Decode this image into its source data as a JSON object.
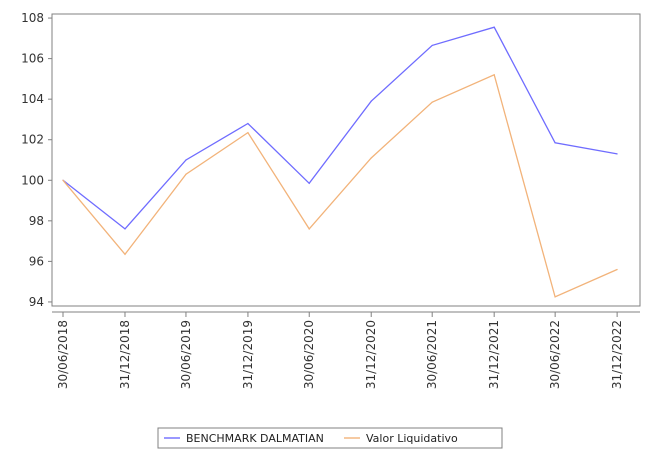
{
  "chart_data": {
    "type": "line",
    "title": "",
    "xlabel": "",
    "ylabel": "",
    "categories": [
      "30/06/2018",
      "31/12/2018",
      "30/06/2019",
      "31/12/2019",
      "30/06/2020",
      "31/12/2020",
      "30/06/2021",
      "31/12/2021",
      "30/06/2022",
      "31/12/2022"
    ],
    "x": [
      "2018-06-30",
      "2018-12-31",
      "2019-06-30",
      "2019-12-31",
      "2020-06-30",
      "2020-12-31",
      "2021-06-30",
      "2021-12-31",
      "2022-06-30",
      "2022-12-31",
      "2023-02-28"
    ],
    "series": [
      {
        "name": "BENCHMARK DALMATIAN",
        "color": "#6f6cff",
        "values": [
          100.0,
          97.6,
          101.0,
          102.8,
          99.85,
          103.9,
          106.65,
          107.55,
          101.85,
          101.3
        ]
      },
      {
        "name": "Valor Liquidativo",
        "color": "#f2b37a",
        "values": [
          100.0,
          96.35,
          100.3,
          102.35,
          97.6,
          101.1,
          103.85,
          105.2,
          94.25,
          95.6
        ]
      }
    ],
    "y_ticks": [
      "94",
      "96",
      "98",
      "100",
      "102",
      "104",
      "106",
      "108"
    ],
    "ylim": [
      93.8,
      108.2
    ],
    "grid": false,
    "legend_position": "bottom"
  }
}
